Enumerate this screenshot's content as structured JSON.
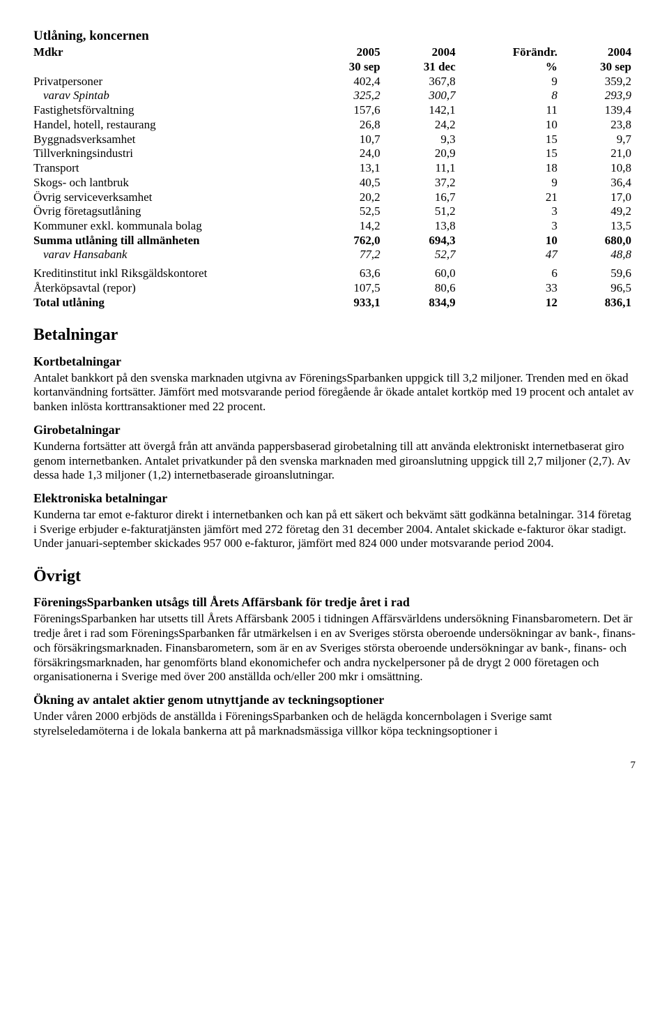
{
  "table": {
    "title": "Utlåning, koncernen",
    "header": {
      "unit": "Mdkr",
      "col1_top": "2005",
      "col1_bot": "30 sep",
      "col2_top": "2004",
      "col2_bot": "31 dec",
      "col3_top": "Förändr.",
      "col3_bot": "%",
      "col4_top": "2004",
      "col4_bot": "30 sep"
    },
    "rows": [
      {
        "label": "Privatpersoner",
        "c1": "402,4",
        "c2": "367,8",
        "c3": "9",
        "c4": "359,2"
      },
      {
        "label": "varav Spintab",
        "c1": "325,2",
        "c2": "300,7",
        "c3": "8",
        "c4": "293,9",
        "italic": true,
        "indent": true
      },
      {
        "label": "Fastighetsförvaltning",
        "c1": "157,6",
        "c2": "142,1",
        "c3": "11",
        "c4": "139,4"
      },
      {
        "label": "Handel, hotell, restaurang",
        "c1": "26,8",
        "c2": "24,2",
        "c3": "10",
        "c4": "23,8"
      },
      {
        "label": "Byggnadsverksamhet",
        "c1": "10,7",
        "c2": "9,3",
        "c3": "15",
        "c4": "9,7"
      },
      {
        "label": "Tillverkningsindustri",
        "c1": "24,0",
        "c2": "20,9",
        "c3": "15",
        "c4": "21,0"
      },
      {
        "label": "Transport",
        "c1": "13,1",
        "c2": "11,1",
        "c3": "18",
        "c4": "10,8"
      },
      {
        "label": "Skogs- och lantbruk",
        "c1": "40,5",
        "c2": "37,2",
        "c3": "9",
        "c4": "36,4"
      },
      {
        "label": "Övrig serviceverksamhet",
        "c1": "20,2",
        "c2": "16,7",
        "c3": "21",
        "c4": "17,0"
      },
      {
        "label": "Övrig företagsutlåning",
        "c1": "52,5",
        "c2": "51,2",
        "c3": "3",
        "c4": "49,2"
      },
      {
        "label": "Kommuner exkl. kommunala bolag",
        "c1": "14,2",
        "c2": "13,8",
        "c3": "3",
        "c4": "13,5"
      },
      {
        "label": "Summa utlåning till allmänheten",
        "c1": "762,0",
        "c2": "694,3",
        "c3": "10",
        "c4": "680,0",
        "bold": true
      },
      {
        "label": "varav Hansabank",
        "c1": "77,2",
        "c2": "52,7",
        "c3": "47",
        "c4": "48,8",
        "italic": true,
        "indent": true
      },
      {
        "label": "Kreditinstitut inkl Riksgäldskontoret",
        "c1": "63,6",
        "c2": "60,0",
        "c3": "6",
        "c4": "59,6",
        "sep": true
      },
      {
        "label": "Återköpsavtal (repor)",
        "c1": "107,5",
        "c2": "80,6",
        "c3": "33",
        "c4": "96,5"
      },
      {
        "label": "Total utlåning",
        "c1": "933,1",
        "c2": "834,9",
        "c3": "12",
        "c4": "836,1",
        "bold": true
      }
    ]
  },
  "sections": {
    "betalningar": {
      "title": "Betalningar",
      "kort": {
        "heading": "Kortbetalningar",
        "text": "Antalet bankkort på den svenska marknaden utgivna av FöreningsSparbanken uppgick till 3,2 miljoner. Trenden med en ökad kortanvändning fortsätter. Jämfört med motsvarande period föregående år ökade antalet kortköp med 19 procent och antalet av banken inlösta korttransaktioner med 22 procent."
      },
      "giro": {
        "heading": "Girobetalningar",
        "text": "Kunderna fortsätter att övergå från att använda pappersbaserad girobetalning till att använda elektroniskt internetbaserat giro genom internetbanken. Antalet privatkunder på den svenska marknaden med giroanslutning uppgick till 2,7 miljoner (2,7). Av dessa hade 1,3 miljoner (1,2) internetbaserade giroanslutningar."
      },
      "elektro": {
        "heading": "Elektroniska betalningar",
        "text": "Kunderna tar emot e-fakturor direkt i internetbanken och kan på ett säkert och bekvämt sätt godkänna betalningar. 314 företag i Sverige erbjuder e-fakturatjänsten jämfört med 272 företag den 31 december 2004. Antalet skickade e-fakturor ökar stadigt. Under januari-september skickades 957 000 e-fakturor, jämfört med 824 000 under motsvarande period 2004."
      }
    },
    "ovrigt": {
      "title": "Övrigt",
      "affarsbank": {
        "heading": "FöreningsSparbanken utsågs till Årets Affärsbank för tredje året i rad",
        "text": "FöreningsSparbanken har utsetts till Årets Affärsbank 2005 i tidningen Affärsvärldens undersökning Finansbarometern. Det är tredje året i rad som FöreningsSparbanken får utmärkelsen i en av Sveriges största oberoende undersökningar av bank-, finans- och försäkringsmarknaden. Finansbarometern, som är en av Sveriges största oberoende undersökningar av bank-, finans- och försäkringsmarknaden, har genomförts bland ekonomichefer och andra nyckelpersoner på de drygt 2 000 företagen och organisationerna i Sverige med över 200 anställda och/eller 200 mkr i omsättning."
      },
      "optioner": {
        "heading": "Ökning av antalet aktier genom utnyttjande av teckningsoptioner",
        "text": "Under våren 2000 erbjöds de anställda i FöreningsSparbanken och de helägda koncernbolagen i Sverige samt styrelseledamöterna i de lokala bankerna att på marknadsmässiga villkor köpa teckningsoptioner i"
      }
    }
  },
  "page_number": "7"
}
